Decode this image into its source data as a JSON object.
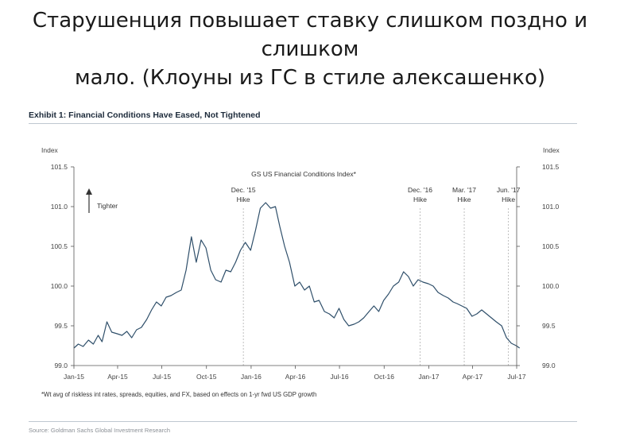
{
  "headline": {
    "line1": "Старушенция повышает ставку слишком поздно и слишком",
    "line2": "мало. (Клоуны из ГС в стиле алексашенко)"
  },
  "exhibit_title": "Exhibit 1: Financial Conditions Have Eased, Not Tightened",
  "source": "Source: Goldman Sachs Global Investment Research",
  "colors": {
    "line": "#2f4f6a",
    "grid_dash": "#b0b0b0",
    "rule": "#bfc7d0"
  },
  "chart_data": {
    "type": "line",
    "title": "GS US Financial Conditions Index*",
    "footnote": "*Wt avg of riskless int rates, spreads, equities, and FX, based on effects on 1-yr fwd US GDP growth",
    "ylabel_left": "Index",
    "ylabel_right": "Index",
    "ylim": [
      99.0,
      101.5
    ],
    "yticks": [
      "101.5",
      "101.0",
      "100.5",
      "100.0",
      "99.5",
      "99.0"
    ],
    "xlim": [
      "2015-01",
      "2017-07"
    ],
    "xticks": [
      "Jan-15",
      "Apr-15",
      "Jul-15",
      "Oct-15",
      "Jan-16",
      "Apr-16",
      "Jul-16",
      "Oct-16",
      "Jan-17",
      "Apr-17",
      "Jul-17"
    ],
    "tighter_label": "Tighter",
    "events": [
      {
        "date": "2015-12-16",
        "line1": "Dec. '15",
        "line2": "Hike"
      },
      {
        "date": "2016-12-14",
        "line1": "Dec. '16",
        "line2": "Hike"
      },
      {
        "date": "2017-03-15",
        "line1": "Mar. '17",
        "line2": "Hike"
      },
      {
        "date": "2017-06-14",
        "line1": "Jun. '17",
        "line2": "Hike"
      }
    ],
    "series": [
      {
        "points": [
          [
            "2015-01-01",
            99.22
          ],
          [
            "2015-01-10",
            99.27
          ],
          [
            "2015-01-20",
            99.24
          ],
          [
            "2015-01-31",
            99.32
          ],
          [
            "2015-02-10",
            99.27
          ],
          [
            "2015-02-20",
            99.38
          ],
          [
            "2015-02-28",
            99.3
          ],
          [
            "2015-03-10",
            99.55
          ],
          [
            "2015-03-20",
            99.42
          ],
          [
            "2015-03-31",
            99.4
          ],
          [
            "2015-04-10",
            99.38
          ],
          [
            "2015-04-20",
            99.43
          ],
          [
            "2015-04-30",
            99.35
          ],
          [
            "2015-05-10",
            99.45
          ],
          [
            "2015-05-20",
            99.48
          ],
          [
            "2015-05-31",
            99.58
          ],
          [
            "2015-06-10",
            99.7
          ],
          [
            "2015-06-20",
            99.8
          ],
          [
            "2015-06-30",
            99.75
          ],
          [
            "2015-07-10",
            99.86
          ],
          [
            "2015-07-20",
            99.88
          ],
          [
            "2015-07-31",
            99.92
          ],
          [
            "2015-08-10",
            99.95
          ],
          [
            "2015-08-20",
            100.2
          ],
          [
            "2015-08-31",
            100.62
          ],
          [
            "2015-09-10",
            100.3
          ],
          [
            "2015-09-20",
            100.58
          ],
          [
            "2015-09-30",
            100.48
          ],
          [
            "2015-10-10",
            100.2
          ],
          [
            "2015-10-20",
            100.08
          ],
          [
            "2015-10-31",
            100.05
          ],
          [
            "2015-11-10",
            100.2
          ],
          [
            "2015-11-20",
            100.18
          ],
          [
            "2015-11-30",
            100.3
          ],
          [
            "2015-12-10",
            100.45
          ],
          [
            "2015-12-20",
            100.55
          ],
          [
            "2015-12-31",
            100.45
          ],
          [
            "2016-01-10",
            100.7
          ],
          [
            "2016-01-20",
            100.98
          ],
          [
            "2016-01-31",
            101.05
          ],
          [
            "2016-02-10",
            100.98
          ],
          [
            "2016-02-20",
            101.0
          ],
          [
            "2016-02-29",
            100.75
          ],
          [
            "2016-03-10",
            100.5
          ],
          [
            "2016-03-20",
            100.3
          ],
          [
            "2016-03-31",
            100.0
          ],
          [
            "2016-04-10",
            100.05
          ],
          [
            "2016-04-20",
            99.95
          ],
          [
            "2016-04-30",
            100.0
          ],
          [
            "2016-05-10",
            99.8
          ],
          [
            "2016-05-20",
            99.82
          ],
          [
            "2016-05-31",
            99.68
          ],
          [
            "2016-06-10",
            99.65
          ],
          [
            "2016-06-20",
            99.6
          ],
          [
            "2016-06-30",
            99.72
          ],
          [
            "2016-07-10",
            99.58
          ],
          [
            "2016-07-20",
            99.5
          ],
          [
            "2016-07-31",
            99.52
          ],
          [
            "2016-08-10",
            99.55
          ],
          [
            "2016-08-20",
            99.6
          ],
          [
            "2016-08-31",
            99.68
          ],
          [
            "2016-09-10",
            99.75
          ],
          [
            "2016-09-20",
            99.68
          ],
          [
            "2016-09-30",
            99.82
          ],
          [
            "2016-10-10",
            99.9
          ],
          [
            "2016-10-20",
            100.0
          ],
          [
            "2016-10-31",
            100.05
          ],
          [
            "2016-11-10",
            100.18
          ],
          [
            "2016-11-20",
            100.12
          ],
          [
            "2016-11-30",
            100.0
          ],
          [
            "2016-12-10",
            100.08
          ],
          [
            "2016-12-20",
            100.05
          ],
          [
            "2016-12-31",
            100.03
          ],
          [
            "2017-01-10",
            100.0
          ],
          [
            "2017-01-20",
            99.92
          ],
          [
            "2017-01-31",
            99.88
          ],
          [
            "2017-02-10",
            99.85
          ],
          [
            "2017-02-20",
            99.8
          ],
          [
            "2017-02-28",
            99.78
          ],
          [
            "2017-03-10",
            99.75
          ],
          [
            "2017-03-20",
            99.72
          ],
          [
            "2017-03-31",
            99.62
          ],
          [
            "2017-04-10",
            99.65
          ],
          [
            "2017-04-20",
            99.7
          ],
          [
            "2017-04-30",
            99.65
          ],
          [
            "2017-05-10",
            99.6
          ],
          [
            "2017-05-20",
            99.55
          ],
          [
            "2017-05-31",
            99.5
          ],
          [
            "2017-06-10",
            99.35
          ],
          [
            "2017-06-20",
            99.28
          ],
          [
            "2017-06-30",
            99.25
          ],
          [
            "2017-07-07",
            99.22
          ]
        ]
      }
    ]
  }
}
